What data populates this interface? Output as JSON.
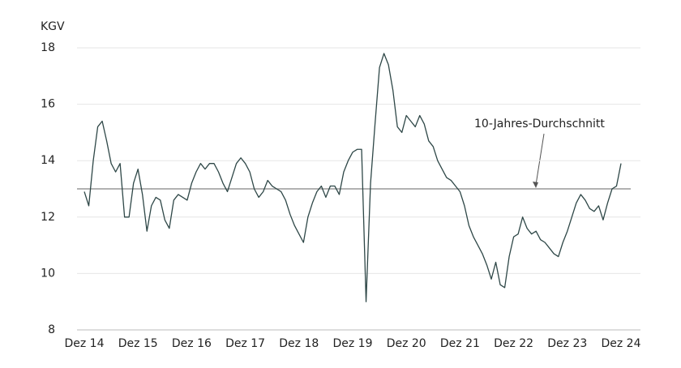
{
  "chart_data": {
    "type": "line",
    "y_axis_label": "KGV",
    "categories": [
      "Dez 14",
      null,
      null,
      null,
      null,
      null,
      null,
      null,
      null,
      null,
      null,
      null,
      "Dez 15",
      null,
      null,
      null,
      null,
      null,
      null,
      null,
      null,
      null,
      null,
      null,
      "Dez 16",
      null,
      null,
      null,
      null,
      null,
      null,
      null,
      null,
      null,
      null,
      null,
      "Dez 17",
      null,
      null,
      null,
      null,
      null,
      null,
      null,
      null,
      null,
      null,
      null,
      "Dez 18",
      null,
      null,
      null,
      null,
      null,
      null,
      null,
      null,
      null,
      null,
      null,
      "Dez 19",
      null,
      null,
      null,
      null,
      null,
      null,
      null,
      null,
      null,
      null,
      null,
      "Dez 20",
      null,
      null,
      null,
      null,
      null,
      null,
      null,
      null,
      null,
      null,
      null,
      "Dez 21",
      null,
      null,
      null,
      null,
      null,
      null,
      null,
      null,
      null,
      null,
      null,
      "Dez 22",
      null,
      null,
      null,
      null,
      null,
      null,
      null,
      null,
      null,
      null,
      null,
      "Dez 23",
      null,
      null,
      null,
      null,
      null,
      null,
      null,
      null,
      null,
      null,
      null,
      "Dez 24"
    ],
    "series": [
      {
        "name": "KGV",
        "color": "#2e4747",
        "values": [
          12.9,
          12.4,
          14.0,
          15.2,
          15.4,
          14.7,
          13.9,
          13.6,
          13.9,
          12.0,
          12.0,
          13.2,
          13.7,
          12.8,
          11.5,
          12.4,
          12.7,
          12.6,
          11.9,
          11.6,
          12.6,
          12.8,
          12.7,
          12.6,
          13.2,
          13.6,
          13.9,
          13.7,
          13.9,
          13.9,
          13.6,
          13.2,
          12.9,
          13.4,
          13.9,
          14.1,
          13.9,
          13.6,
          13.0,
          12.7,
          12.9,
          13.3,
          13.1,
          13.0,
          12.9,
          12.6,
          12.1,
          11.7,
          11.4,
          11.1,
          12.0,
          12.5,
          12.9,
          13.1,
          12.7,
          13.1,
          13.1,
          12.8,
          13.6,
          14.0,
          14.3,
          14.4,
          14.4,
          9.0,
          13.2,
          15.3,
          17.3,
          17.8,
          17.4,
          16.5,
          15.2,
          15.0,
          15.6,
          15.4,
          15.2,
          15.6,
          15.3,
          14.7,
          14.5,
          14.0,
          13.7,
          13.4,
          13.3,
          13.1,
          12.9,
          12.4,
          11.7,
          11.3,
          11.0,
          10.7,
          10.3,
          9.8,
          10.4,
          9.6,
          9.5,
          10.6,
          11.3,
          11.4,
          12.0,
          11.6,
          11.4,
          11.5,
          11.2,
          11.1,
          10.9,
          10.7,
          10.6,
          11.1,
          11.5,
          12.0,
          12.5,
          12.8,
          12.6,
          12.3,
          12.2,
          12.4,
          11.9,
          12.5,
          13.0,
          13.1,
          13.9
        ]
      }
    ],
    "average": {
      "label": "10-Jahres-Durchschnitt",
      "value": 13.0,
      "color": "#999999"
    },
    "ylim": [
      8,
      18
    ],
    "yticks": [
      8,
      10,
      12,
      14,
      16,
      18
    ],
    "grid": true
  }
}
